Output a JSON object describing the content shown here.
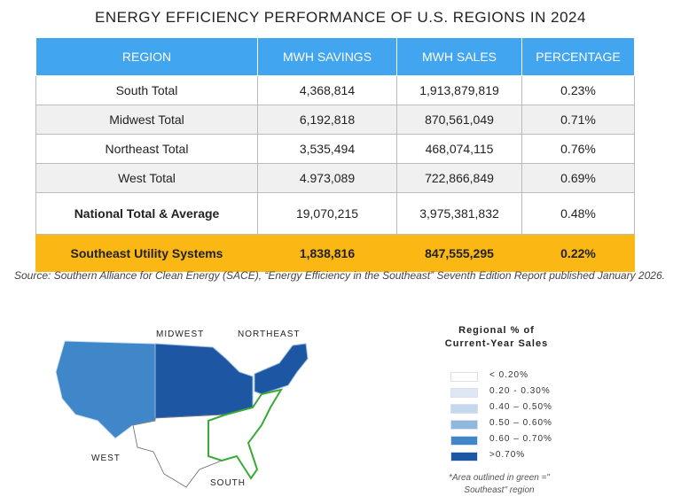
{
  "title": "ENERGY EFFICIENCY PERFORMANCE OF U.S. REGIONS IN 2024",
  "chart_data": {
    "type": "table",
    "columns": [
      "REGION",
      "MWH SAVINGS",
      "MWH SALES",
      "PERCENTAGE"
    ],
    "rows": [
      [
        "South Total",
        "4,368,814",
        "1,913,879,819",
        "0.23%"
      ],
      [
        "Midwest Total",
        "6,192,818",
        "870,561,049",
        "0.71%"
      ],
      [
        "Northeast Total",
        "3,535,494",
        "468,074,115",
        "0.76%"
      ],
      [
        "West Total",
        "4.973,089",
        "722,866,849",
        "0.69%"
      ],
      [
        "National Total & Average",
        "19,070,215",
        "3,975,381,832",
        "0.48%"
      ],
      [
        "Southeast Utility Systems",
        "1,838,816",
        "847,555,295",
        "0.22%"
      ]
    ]
  },
  "source": "Source: Southern Alliance for Clean Energy (SACE), “Energy Efficiency in the Southeast” Seventh Edition Report published January 2026.",
  "map": {
    "labels": {
      "midwest": "MIDWEST",
      "northeast": "NORTHEAST",
      "west": "WEST",
      "south": "SOUTH"
    },
    "legend_title_1": "Regional % of",
    "legend_title_2": "Current-Year Sales",
    "legend": [
      {
        "label": "< 0.20%",
        "color": "#ffffff"
      },
      {
        "label": "0.20 - 0.30%",
        "color": "#dde8f4"
      },
      {
        "label": "0.40 – 0.50%",
        "color": "#c2d8ec"
      },
      {
        "label": "0.50 – 0.60%",
        "color": "#8fb9dc"
      },
      {
        "label": "0.60 – 0.70%",
        "color": "#3f87c8"
      },
      {
        "label": ">0.70%",
        "color": "#1d57a3"
      }
    ],
    "note_1": "*Area outlined in green =\"",
    "note_2": "Southeast\" region",
    "southeast_outline_color": "#3aa935"
  }
}
